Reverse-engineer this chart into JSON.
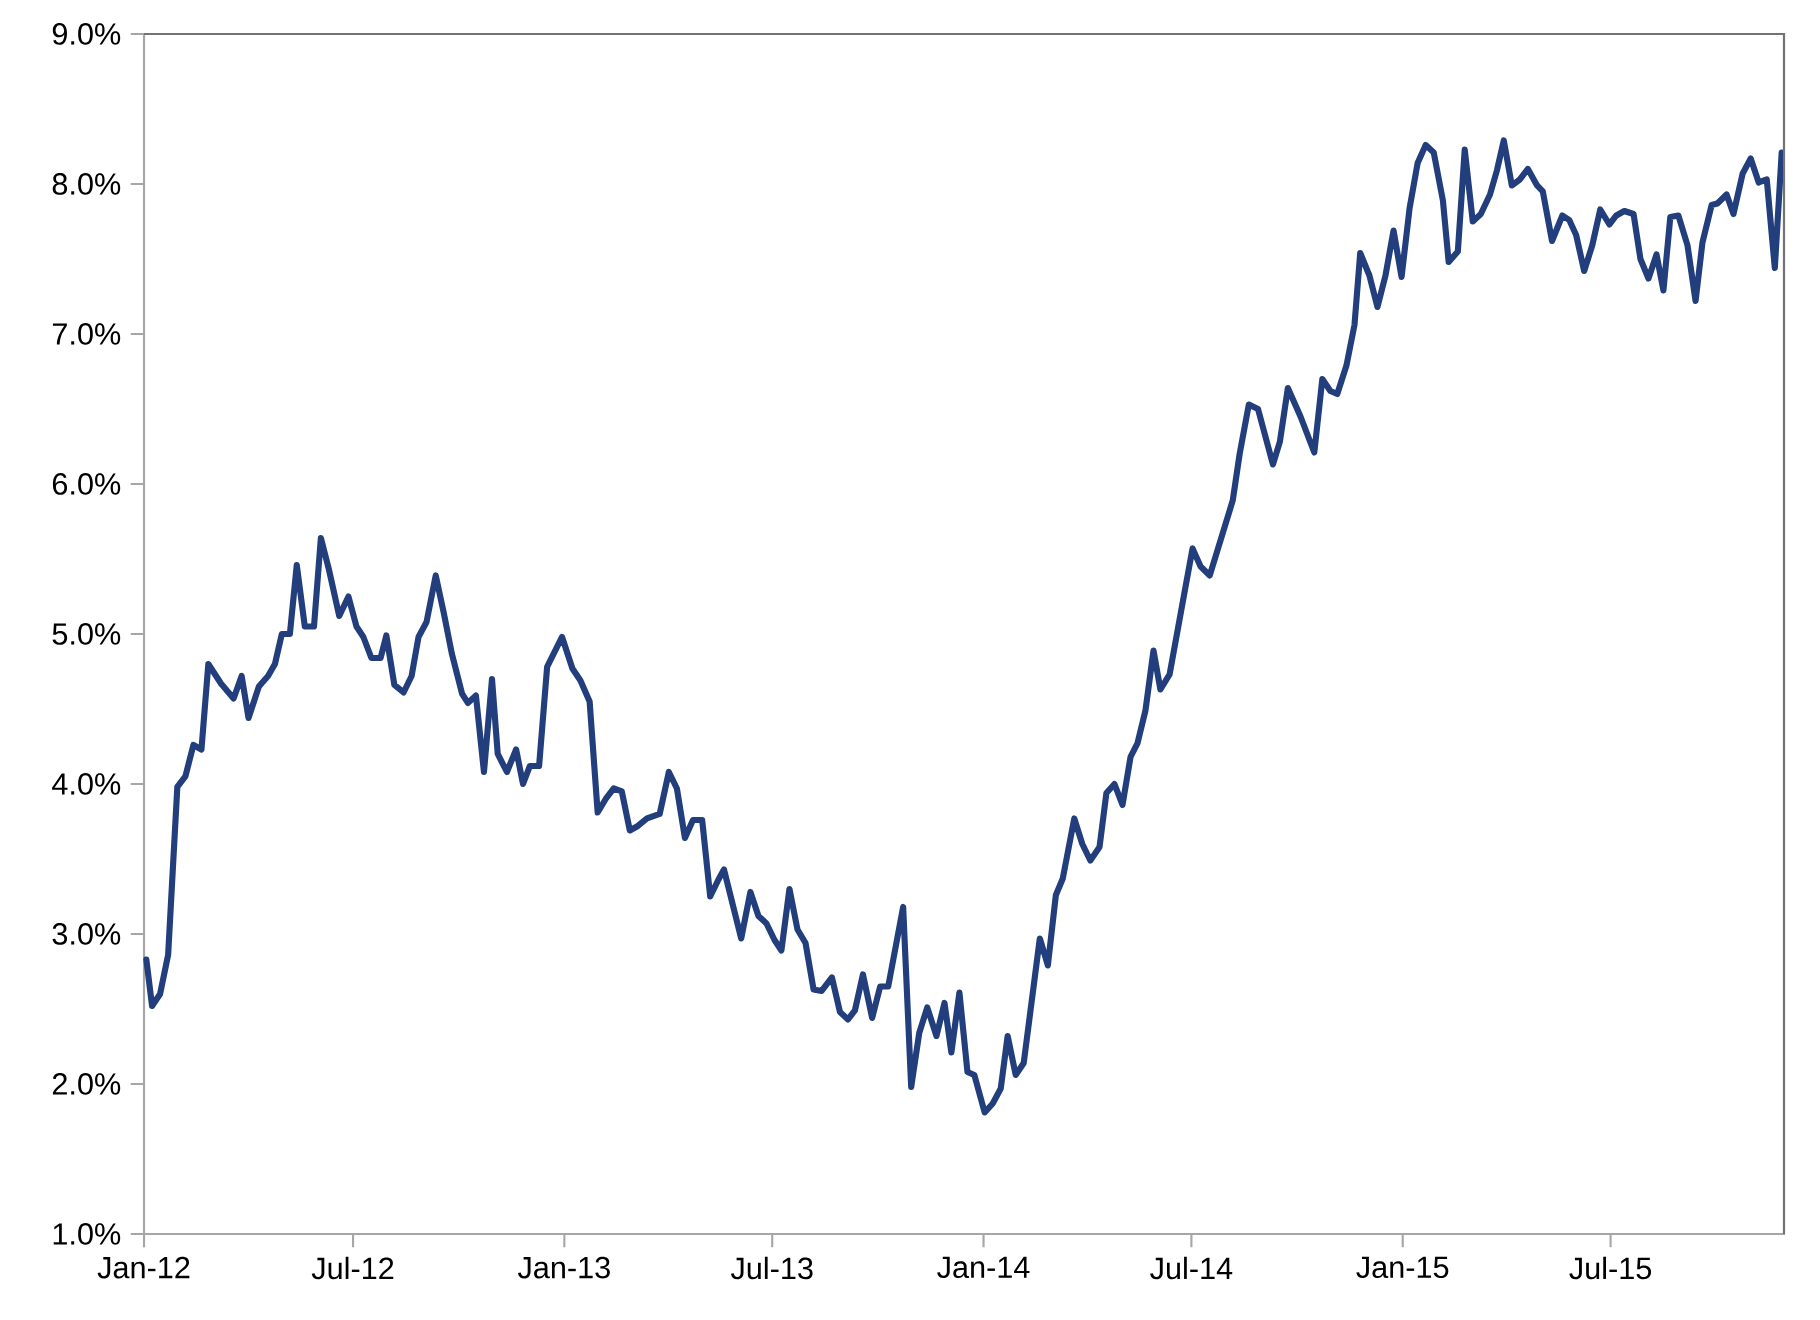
{
  "chart_data": {
    "type": "line",
    "marker": "none",
    "line_style": "solid",
    "xlim": [
      "2012-01-01",
      "2015-11-29"
    ],
    "xticks": [
      {
        "value": "2012-01-01",
        "label": "Jan-12"
      },
      {
        "value": "2012-07-01",
        "label": "Jul-12"
      },
      {
        "value": "2013-01-01",
        "label": "Jan-13"
      },
      {
        "value": "2013-07-01",
        "label": "Jul-13"
      },
      {
        "value": "2014-01-01",
        "label": "Jan-14"
      },
      {
        "value": "2014-07-01",
        "label": "Jul-14"
      },
      {
        "value": "2015-01-01",
        "label": "Jan-15"
      },
      {
        "value": "2015-07-01",
        "label": "Jul-15"
      }
    ],
    "ylim": [
      1,
      9
    ],
    "yticks": [
      {
        "value": 1,
        "label": "1.0%"
      },
      {
        "value": 2,
        "label": "2.0%"
      },
      {
        "value": 3,
        "label": "3.0%"
      },
      {
        "value": 4,
        "label": "4.0%"
      },
      {
        "value": 5,
        "label": "5.0%"
      },
      {
        "value": 6,
        "label": "6.0%"
      },
      {
        "value": 7,
        "label": "7.0%"
      },
      {
        "value": 8,
        "label": "8.0%"
      },
      {
        "value": 9,
        "label": "9.0%"
      }
    ],
    "x": [
      "2012-01-03",
      "2012-01-08",
      "2012-01-15",
      "2012-01-22",
      "2012-01-30",
      "2012-02-06",
      "2012-02-13",
      "2012-02-20",
      "2012-02-26",
      "2012-03-08",
      "2012-03-19",
      "2012-03-26",
      "2012-04-01",
      "2012-04-10",
      "2012-04-18",
      "2012-04-24",
      "2012-04-30",
      "2012-05-07",
      "2012-05-13",
      "2012-05-20",
      "2012-05-28",
      "2012-06-03",
      "2012-06-10",
      "2012-06-19",
      "2012-06-27",
      "2012-07-04",
      "2012-07-10",
      "2012-07-17",
      "2012-07-25",
      "2012-07-30",
      "2012-08-06",
      "2012-08-14",
      "2012-08-21",
      "2012-08-27",
      "2012-09-03",
      "2012-09-11",
      "2012-09-18",
      "2012-09-25",
      "2012-10-04",
      "2012-10-09",
      "2012-10-16",
      "2012-10-23",
      "2012-10-30",
      "2012-11-04",
      "2012-11-12",
      "2012-11-20",
      "2012-11-26",
      "2012-12-02",
      "2012-12-10",
      "2012-12-17",
      "2012-12-30",
      "2013-01-08",
      "2013-01-15",
      "2013-01-23",
      "2013-01-30",
      "2013-02-06",
      "2013-02-13",
      "2013-02-20",
      "2013-02-27",
      "2013-03-06",
      "2013-03-14",
      "2013-03-25",
      "2013-04-02",
      "2013-04-09",
      "2013-04-16",
      "2013-04-23",
      "2013-05-01",
      "2013-05-08",
      "2013-05-15",
      "2013-05-20",
      "2013-06-04",
      "2013-06-12",
      "2013-06-19",
      "2013-06-26",
      "2013-07-03",
      "2013-07-09",
      "2013-07-16",
      "2013-07-23",
      "2013-07-30",
      "2013-08-06",
      "2013-08-13",
      "2013-08-22",
      "2013-08-29",
      "2013-09-05",
      "2013-09-11",
      "2013-09-18",
      "2013-09-26",
      "2013-10-03",
      "2013-10-10",
      "2013-10-23",
      "2013-10-30",
      "2013-11-06",
      "2013-11-13",
      "2013-11-21",
      "2013-11-28",
      "2013-12-04",
      "2013-12-11",
      "2013-12-18",
      "2013-12-24",
      "2014-01-02",
      "2014-01-09",
      "2014-01-16",
      "2014-01-22",
      "2014-01-29",
      "2014-02-05",
      "2014-02-19",
      "2014-02-26",
      "2014-03-05",
      "2014-03-11",
      "2014-03-21",
      "2014-03-28",
      "2014-04-04",
      "2014-04-12",
      "2014-04-18",
      "2014-04-25",
      "2014-05-02",
      "2014-05-09",
      "2014-05-15",
      "2014-05-22",
      "2014-05-29",
      "2014-06-04",
      "2014-06-12",
      "2014-06-26",
      "2014-07-02",
      "2014-07-09",
      "2014-07-17",
      "2014-08-06",
      "2014-08-12",
      "2014-08-20",
      "2014-08-28",
      "2014-09-10",
      "2014-09-16",
      "2014-09-23",
      "2014-10-04",
      "2014-10-16",
      "2014-10-23",
      "2014-10-30",
      "2014-11-05",
      "2014-11-13",
      "2014-11-20",
      "2014-11-25",
      "2014-12-03",
      "2014-12-10",
      "2014-12-17",
      "2014-12-24",
      "2014-12-31",
      "2015-01-07",
      "2015-01-14",
      "2015-01-21",
      "2015-01-28",
      "2015-02-05",
      "2015-02-10",
      "2015-02-18",
      "2015-02-24",
      "2015-03-03",
      "2015-03-10",
      "2015-03-18",
      "2015-03-24",
      "2015-03-30",
      "2015-04-06",
      "2015-04-13",
      "2015-04-20",
      "2015-04-28",
      "2015-05-03",
      "2015-05-11",
      "2015-05-20",
      "2015-05-26",
      "2015-06-01",
      "2015-06-08",
      "2015-06-15",
      "2015-06-22",
      "2015-06-30",
      "2015-07-06",
      "2015-07-13",
      "2015-07-21",
      "2015-07-27",
      "2015-08-03",
      "2015-08-10",
      "2015-08-16",
      "2015-08-22",
      "2015-08-29",
      "2015-09-06",
      "2015-09-13",
      "2015-09-19",
      "2015-09-27",
      "2015-10-02",
      "2015-10-10",
      "2015-10-16",
      "2015-10-24",
      "2015-10-31",
      "2015-11-07",
      "2015-11-14",
      "2015-11-21",
      "2015-11-27"
    ],
    "series": [
      {
        "color": "#233e7c",
        "values": [
          2.83,
          2.52,
          2.6,
          2.86,
          3.98,
          4.05,
          4.26,
          4.23,
          4.8,
          4.67,
          4.57,
          4.72,
          4.44,
          4.65,
          4.72,
          4.8,
          5.0,
          5.0,
          5.46,
          5.05,
          5.05,
          5.64,
          5.43,
          5.12,
          5.25,
          5.05,
          4.98,
          4.84,
          4.84,
          4.99,
          4.66,
          4.61,
          4.72,
          4.98,
          5.08,
          5.39,
          5.14,
          4.87,
          4.6,
          4.54,
          4.59,
          4.08,
          4.7,
          4.2,
          4.08,
          4.23,
          4.0,
          4.12,
          4.12,
          4.78,
          4.98,
          4.77,
          4.69,
          4.55,
          3.81,
          3.9,
          3.97,
          3.95,
          3.69,
          3.72,
          3.77,
          3.8,
          4.08,
          3.97,
          3.64,
          3.76,
          3.76,
          3.25,
          3.36,
          3.43,
          2.97,
          3.28,
          3.12,
          3.07,
          2.96,
          2.89,
          3.3,
          3.03,
          2.94,
          2.63,
          2.62,
          2.71,
          2.48,
          2.43,
          2.49,
          2.73,
          2.44,
          2.65,
          2.65,
          3.18,
          1.98,
          2.34,
          2.51,
          2.32,
          2.54,
          2.21,
          2.61,
          2.08,
          2.06,
          1.81,
          1.87,
          1.97,
          2.32,
          2.06,
          2.14,
          2.97,
          2.79,
          3.26,
          3.37,
          3.77,
          3.6,
          3.49,
          3.58,
          3.94,
          4.0,
          3.86,
          4.18,
          4.27,
          4.49,
          4.89,
          4.63,
          4.73,
          5.32,
          5.57,
          5.45,
          5.39,
          5.89,
          6.2,
          6.53,
          6.5,
          6.13,
          6.28,
          6.64,
          6.45,
          6.21,
          6.7,
          6.62,
          6.6,
          6.79,
          7.06,
          7.54,
          7.39,
          7.18,
          7.39,
          7.69,
          7.38,
          7.84,
          8.14,
          8.26,
          8.21,
          7.89,
          7.48,
          7.55,
          8.23,
          7.75,
          7.8,
          7.93,
          8.09,
          8.29,
          7.99,
          8.03,
          8.1,
          7.99,
          7.95,
          7.62,
          7.79,
          7.76,
          7.66,
          7.42,
          7.59,
          7.83,
          7.73,
          7.79,
          7.82,
          7.8,
          7.5,
          7.37,
          7.53,
          7.29,
          7.78,
          7.79,
          7.59,
          7.22,
          7.61,
          7.86,
          7.87,
          7.93,
          7.8,
          8.07,
          8.17,
          8.01,
          8.03,
          7.44,
          8.21
        ]
      }
    ]
  }
}
